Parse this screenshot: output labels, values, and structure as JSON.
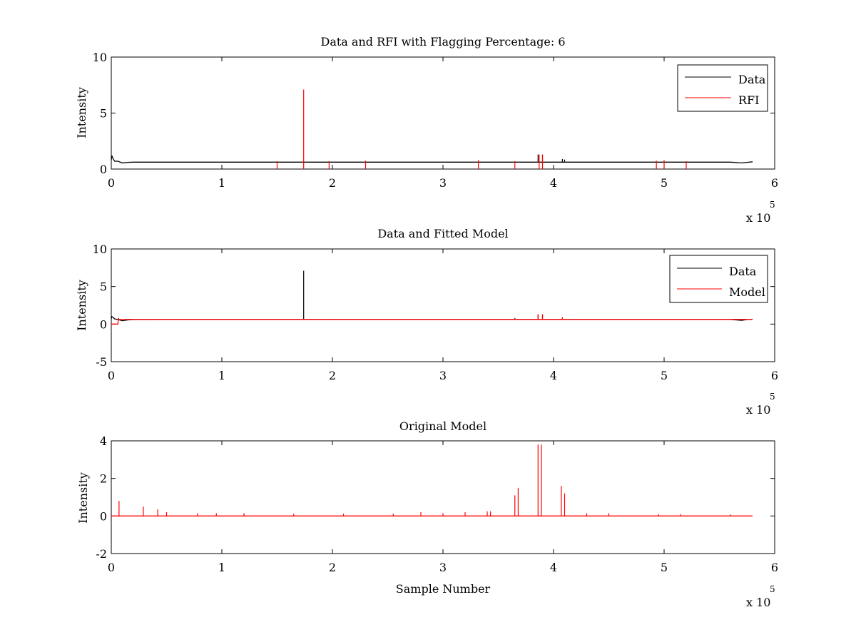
{
  "colors": {
    "data": "#000000",
    "rfi": "#ff0000",
    "model": "#ff0000",
    "axes": "#000000",
    "background": "#ffffff"
  },
  "chart_data": [
    {
      "type": "line",
      "title": "Data and RFI with Flagging Percentage: 6",
      "xlabel": "",
      "ylabel": "Intensity",
      "xlim": [
        0,
        6
      ],
      "ylim": [
        0,
        10
      ],
      "xticks": [
        "0",
        "1",
        "2",
        "3",
        "4",
        "5",
        "6"
      ],
      "yticks": [
        "0",
        "5",
        "10"
      ],
      "x_multiplier": {
        "text": "x 10",
        "exponent": "5"
      },
      "grid": false,
      "legend_position": "top-right",
      "series": [
        {
          "name": "Data",
          "color": "#000000",
          "x": [
            0.0,
            0.005,
            0.015,
            0.03,
            0.06,
            0.1,
            0.15,
            0.2,
            0.5,
            1.0,
            1.5,
            1.74,
            2.0,
            2.5,
            3.0,
            3.5,
            3.86,
            3.9,
            4.1,
            4.5,
            5.0,
            5.5,
            5.6,
            5.7,
            5.75,
            5.8
          ],
          "y": [
            0.8,
            1.2,
            0.95,
            0.7,
            0.7,
            0.55,
            0.6,
            0.62,
            0.62,
            0.62,
            0.62,
            0.62,
            0.62,
            0.62,
            0.62,
            0.62,
            0.62,
            0.62,
            0.62,
            0.62,
            0.62,
            0.62,
            0.62,
            0.55,
            0.6,
            0.65
          ],
          "spikes": [
            [
              3.86,
              1.3
            ],
            [
              3.9,
              1.3
            ],
            [
              4.08,
              0.9
            ],
            [
              4.1,
              0.85
            ]
          ]
        },
        {
          "name": "RFI",
          "color": "#ff0000",
          "spikes": [
            [
              1.5,
              0.7
            ],
            [
              1.74,
              7.1
            ],
            [
              1.97,
              0.7
            ],
            [
              2.3,
              0.75
            ],
            [
              3.32,
              0.8
            ],
            [
              3.65,
              0.7
            ],
            [
              3.87,
              1.3
            ],
            [
              3.9,
              1.3
            ],
            [
              4.93,
              0.75
            ],
            [
              5.0,
              0.8
            ],
            [
              5.2,
              0.7
            ]
          ]
        }
      ]
    },
    {
      "type": "line",
      "title": "Data and Fitted Model",
      "xlabel": "",
      "ylabel": "Intensity",
      "xlim": [
        0,
        6
      ],
      "ylim": [
        -5,
        10
      ],
      "xticks": [
        "0",
        "1",
        "2",
        "3",
        "4",
        "5",
        "6"
      ],
      "yticks": [
        "-5",
        "0",
        "5",
        "10"
      ],
      "x_multiplier": {
        "text": "x 10",
        "exponent": "5"
      },
      "grid": false,
      "legend_position": "top-right",
      "series": [
        {
          "name": "Data",
          "color": "#000000",
          "x": [
            0.0,
            0.005,
            0.015,
            0.03,
            0.06,
            0.1,
            0.15,
            0.2,
            0.5,
            1.0,
            1.5,
            1.74,
            2.0,
            2.5,
            3.0,
            3.5,
            4.0,
            4.5,
            5.0,
            5.5,
            5.6,
            5.7,
            5.75,
            5.8
          ],
          "y": [
            0.7,
            1.0,
            0.9,
            0.7,
            0.6,
            0.45,
            0.55,
            0.6,
            0.62,
            0.62,
            0.62,
            0.62,
            0.62,
            0.62,
            0.62,
            0.62,
            0.62,
            0.62,
            0.62,
            0.62,
            0.62,
            0.5,
            0.6,
            0.65
          ],
          "spikes": [
            [
              1.74,
              7.1
            ],
            [
              1.97,
              0.7
            ],
            [
              3.65,
              0.8
            ],
            [
              3.86,
              1.3
            ],
            [
              3.9,
              1.3
            ],
            [
              4.08,
              0.9
            ]
          ]
        },
        {
          "name": "Model",
          "color": "#ff0000",
          "x": [
            0.0,
            0.06,
            0.065,
            0.07,
            0.2,
            1.0,
            2.0,
            3.0,
            4.0,
            5.0,
            5.8
          ],
          "y": [
            0.0,
            0.0,
            0.8,
            0.6,
            0.62,
            0.62,
            0.62,
            0.62,
            0.62,
            0.62,
            0.62
          ],
          "spikes": [
            [
              3.86,
              1.3
            ],
            [
              3.9,
              1.3
            ],
            [
              4.08,
              0.9
            ]
          ]
        }
      ]
    },
    {
      "type": "line",
      "title": "Original Model",
      "xlabel": "Sample Number",
      "ylabel": "Intensity",
      "xlim": [
        0,
        6
      ],
      "ylim": [
        -2,
        4
      ],
      "xticks": [
        "0",
        "1",
        "2",
        "3",
        "4",
        "5",
        "6"
      ],
      "yticks": [
        "-2",
        "0",
        "2",
        "4"
      ],
      "x_multiplier": {
        "text": "x 10",
        "exponent": "5"
      },
      "grid": false,
      "legend_position": "none",
      "series": [
        {
          "color": "#ff0000",
          "x": [
            0.0,
            5.8
          ],
          "y": [
            0.0,
            0.0
          ],
          "spikes": [
            [
              0.07,
              0.8
            ],
            [
              0.29,
              0.5
            ],
            [
              0.42,
              0.35
            ],
            [
              0.5,
              0.2
            ],
            [
              0.78,
              0.15
            ],
            [
              0.95,
              0.15
            ],
            [
              1.2,
              0.15
            ],
            [
              1.65,
              0.12
            ],
            [
              2.1,
              0.12
            ],
            [
              2.55,
              0.12
            ],
            [
              2.8,
              0.2
            ],
            [
              3.0,
              0.15
            ],
            [
              3.2,
              0.2
            ],
            [
              3.4,
              0.25
            ],
            [
              3.43,
              0.25
            ],
            [
              3.65,
              1.1
            ],
            [
              3.68,
              1.5
            ],
            [
              3.86,
              3.8
            ],
            [
              3.89,
              3.8
            ],
            [
              4.07,
              1.6
            ],
            [
              4.1,
              1.2
            ],
            [
              4.3,
              0.15
            ],
            [
              4.5,
              0.15
            ],
            [
              4.95,
              0.1
            ],
            [
              5.15,
              0.1
            ],
            [
              5.6,
              0.08
            ]
          ]
        }
      ]
    }
  ]
}
